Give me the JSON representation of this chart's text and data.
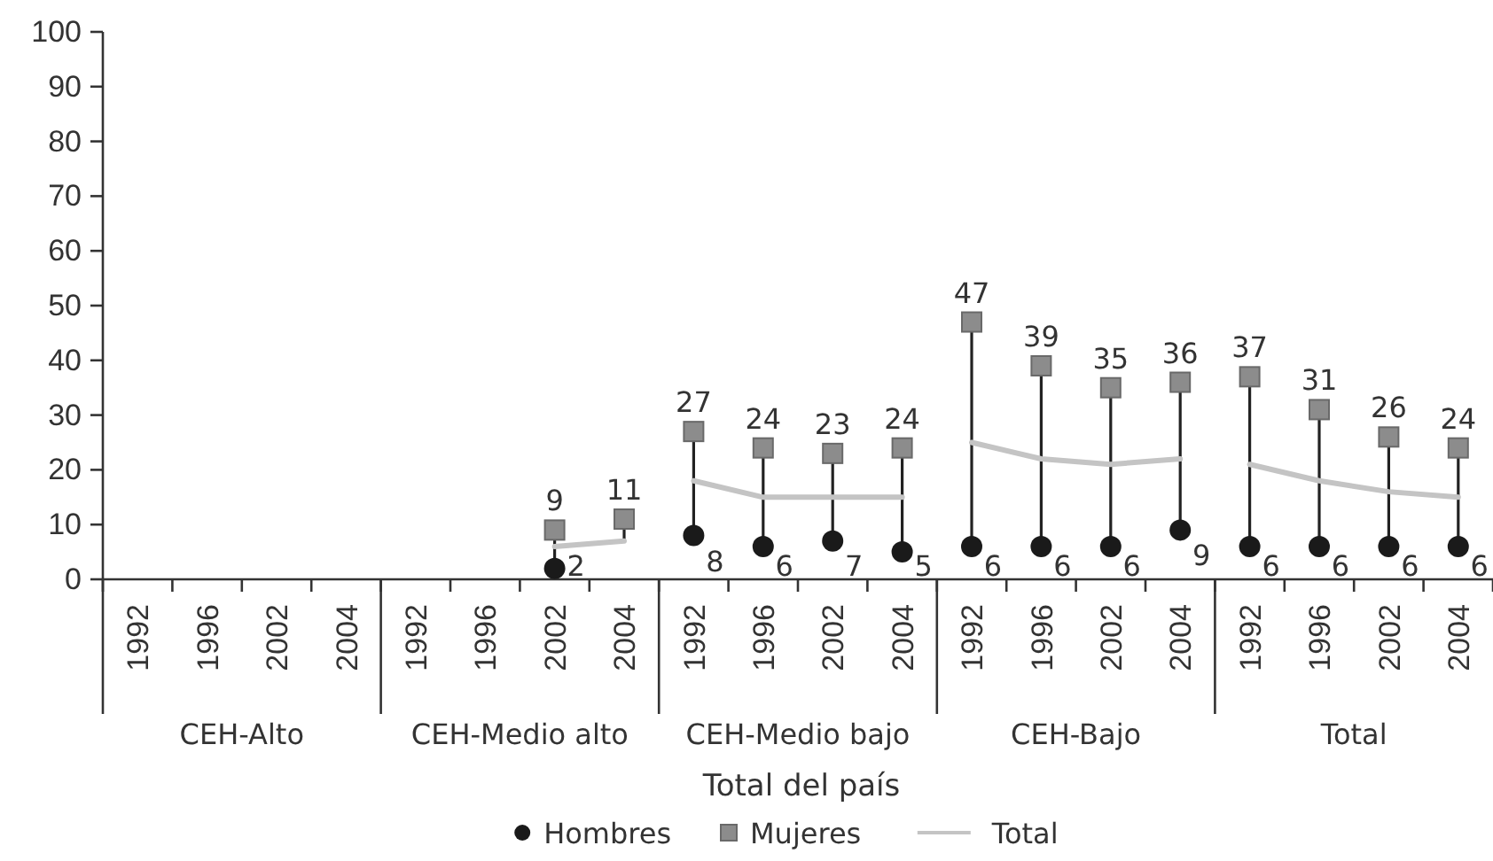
{
  "chart_data": {
    "type": "scatter",
    "xlabel": "Total del país",
    "legend": "bottom",
    "annotations": [
      "CEH-Alto",
      "CEH-Medio alto",
      "CEH-Medio bajo",
      "CEH-Bajo",
      "Total"
    ],
    "categories": [
      "1992",
      "1996",
      "2002",
      "2004",
      "1992",
      "1996",
      "2002",
      "2004",
      "1992",
      "1996",
      "2002",
      "2004",
      "1992",
      "1996",
      "2002",
      "2004",
      "1992",
      "1996",
      "2002",
      "2004"
    ],
    "ylim": [
      0,
      100
    ],
    "yticks": [
      0,
      10,
      20,
      30,
      40,
      50,
      60,
      70,
      80,
      90,
      100
    ],
    "series": [
      {
        "name": "Hombres",
        "marker": "circle",
        "color": "#1a1a1a",
        "values": [
          null,
          null,
          null,
          null,
          null,
          null,
          2,
          null,
          8,
          6,
          7,
          5,
          6,
          6,
          6,
          9,
          6,
          6,
          6,
          6
        ],
        "value_labels": [
          null,
          null,
          null,
          null,
          null,
          null,
          "2",
          null,
          "8",
          "6",
          "7",
          "5",
          "6",
          "6",
          "6",
          "9",
          "6",
          "6",
          "6",
          "6"
        ]
      },
      {
        "name": "Mujeres",
        "marker": "square",
        "color": "#8c8c8c",
        "values": [
          null,
          null,
          null,
          null,
          null,
          null,
          9,
          11,
          27,
          24,
          23,
          24,
          47,
          39,
          35,
          36,
          37,
          31,
          26,
          24
        ],
        "value_labels": [
          null,
          null,
          null,
          null,
          null,
          null,
          "9",
          "11",
          "27",
          "24",
          "23",
          "24",
          "47",
          "39",
          "35",
          "36",
          "37",
          "31",
          "26",
          "24"
        ]
      },
      {
        "name": "Total",
        "type": "line",
        "marker": "none",
        "color": "#c4c4c4",
        "values": [
          null,
          null,
          null,
          null,
          null,
          null,
          6,
          7,
          null,
          null,
          null,
          null,
          null,
          null,
          null,
          null,
          null,
          null,
          null,
          null
        ]
      },
      {
        "type": "line",
        "marker": "none",
        "color": "#c4c4c4",
        "values": [
          null,
          null,
          null,
          null,
          null,
          null,
          null,
          null,
          18,
          15,
          15,
          15,
          null,
          null,
          null,
          null,
          null,
          null,
          null,
          null
        ]
      },
      {
        "type": "line",
        "marker": "none",
        "color": "#c4c4c4",
        "values": [
          null,
          null,
          null,
          null,
          null,
          null,
          null,
          null,
          null,
          null,
          null,
          null,
          25,
          22,
          21,
          22,
          null,
          null,
          null,
          null
        ]
      },
      {
        "type": "line",
        "marker": "none",
        "color": "#c4c4c4",
        "values": [
          null,
          null,
          null,
          null,
          null,
          null,
          null,
          null,
          null,
          null,
          null,
          null,
          null,
          null,
          null,
          null,
          21,
          18,
          16,
          15
        ]
      }
    ]
  }
}
